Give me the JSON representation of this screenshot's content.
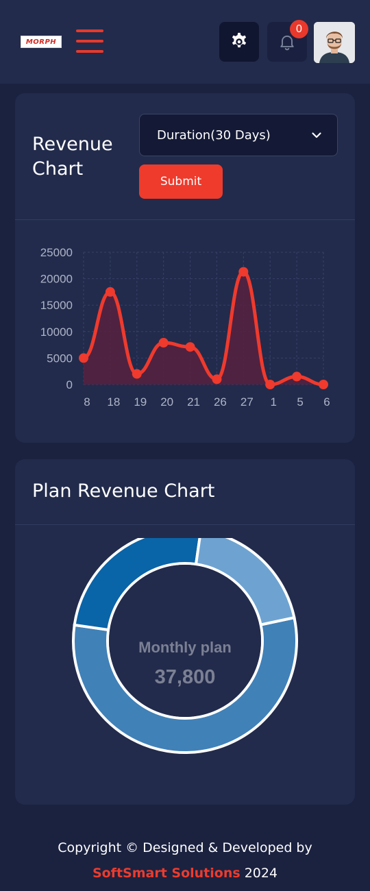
{
  "header": {
    "logo_text": "MORPH",
    "notification_count": "0",
    "icons": [
      "menu-icon",
      "gear-icon",
      "bell-icon"
    ]
  },
  "revenue_card": {
    "title": "Revenue Chart",
    "duration_label": "Duration(30 Days)",
    "submit_label": "Submit"
  },
  "plan_card": {
    "title": "Plan Revenue Chart",
    "center_label": "Monthly plan",
    "center_value": "37,800"
  },
  "footer": {
    "line1": "Copyright © Designed & Developed by",
    "brand": "SoftSmart Solutions",
    "year": "2024"
  },
  "colors": {
    "background": "#1b2240",
    "card": "#222b4b",
    "accent": "#ee3b2c",
    "line": "#ef3a2d"
  },
  "chart_data": [
    {
      "type": "area",
      "categories": [
        "8",
        "18",
        "19",
        "20",
        "21",
        "26",
        "27",
        "1",
        "5",
        "6"
      ],
      "series": [
        {
          "values": [
            5000,
            17500,
            2000,
            7900,
            7100,
            1000,
            21300,
            0,
            1500,
            0
          ]
        }
      ],
      "ylim": [
        0,
        25000
      ],
      "yticks": [
        "25000",
        "20000",
        "15000",
        "10000",
        "5000",
        "0"
      ],
      "grid": true
    },
    {
      "type": "pie",
      "labels": [
        "Monthly plan"
      ],
      "values": [
        37800
      ],
      "slice_colors": [
        "#4081b8",
        "#0a64a8",
        "#6ea3d1"
      ],
      "slice_fractions": [
        0.556,
        0.25,
        0.194
      ]
    }
  ]
}
